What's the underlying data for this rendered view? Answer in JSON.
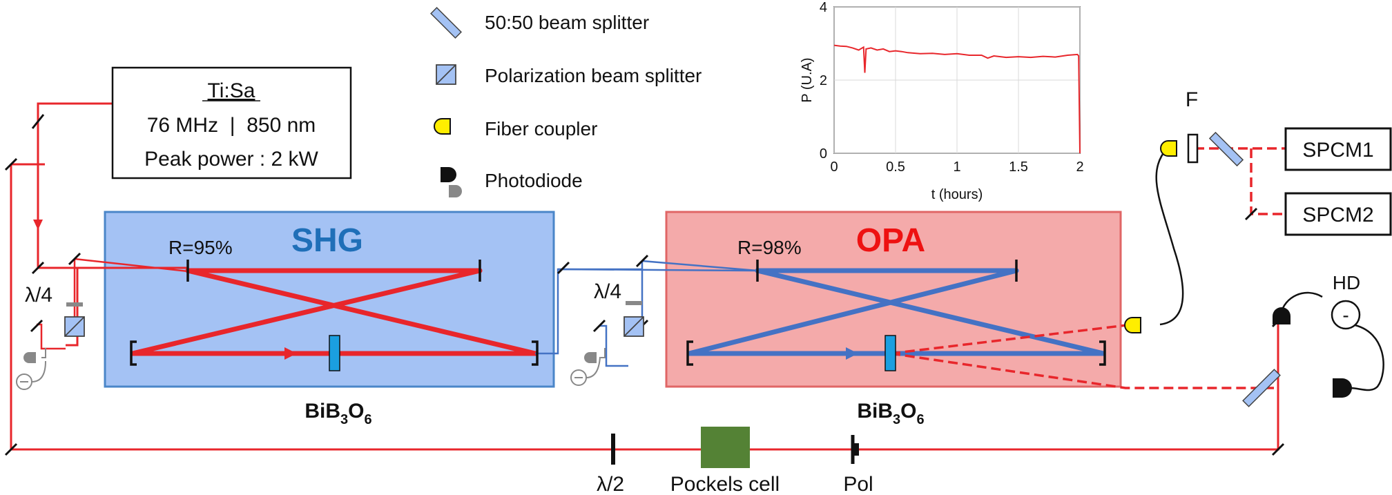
{
  "laser": {
    "title": "Ti:Sa",
    "line1": "76 MHz  |  850 nm",
    "line2": "Peak power : 2 kW"
  },
  "legend": {
    "bs_5050": "50:50 beam splitter",
    "pbs": "Polarization beam splitter",
    "fiber_coupler": "Fiber coupler",
    "photodiode": "Photodiode"
  },
  "shg": {
    "title": "SHG",
    "mirror_reflectivity": "R=95%",
    "crystal": "BiB",
    "crystal_sub1": "3",
    "crystal_mid": "O",
    "crystal_sub2": "6",
    "waveplate": "λ/4"
  },
  "opa": {
    "title": "OPA",
    "mirror_reflectivity": "R=98%",
    "crystal": "BiB",
    "crystal_sub1": "3",
    "crystal_mid": "O",
    "crystal_sub2": "6",
    "waveplate": "λ/4"
  },
  "detection": {
    "filter": "F",
    "spcm1": "SPCM1",
    "spcm2": "SPCM2",
    "hd": "HD",
    "hd_sign": "-"
  },
  "bottom": {
    "half_wave": "λ/2",
    "pockels": "Pockels cell",
    "pol": "Pol"
  },
  "colors": {
    "red_beam": "#e8262b",
    "blue_beam": "#4472c4",
    "shg_fill": "#a4c2f4",
    "shg_stroke": "#4a86c8",
    "opa_fill": "#f4aaaa",
    "opa_stroke": "#e06666",
    "fiber_yellow": "#ffee00",
    "pockels_green": "#548235",
    "crystal_blue": "#1b9fe0",
    "shg_title": "#1f6fb8",
    "opa_title": "#ee1111"
  },
  "chart_data": {
    "type": "line",
    "xlabel": "t (hours)",
    "ylabel": "P (U.A)",
    "xlim": [
      0,
      2
    ],
    "ylim": [
      0,
      4
    ],
    "xticks": [
      "0",
      "0.5",
      "1",
      "1.5",
      "2"
    ],
    "yticks": [
      "0",
      "2",
      "4"
    ],
    "grid": true,
    "series": [
      {
        "color": "#e8262b",
        "x": [
          0,
          0.05,
          0.1,
          0.15,
          0.2,
          0.24,
          0.25,
          0.26,
          0.3,
          0.35,
          0.4,
          0.45,
          0.5,
          0.55,
          0.6,
          0.7,
          0.8,
          0.9,
          1.0,
          1.1,
          1.2,
          1.25,
          1.3,
          1.4,
          1.5,
          1.6,
          1.7,
          1.8,
          1.9,
          1.98,
          1.99,
          2.0
        ],
        "y": [
          2.95,
          2.93,
          2.92,
          2.88,
          2.82,
          2.9,
          2.2,
          2.85,
          2.88,
          2.82,
          2.85,
          2.78,
          2.8,
          2.78,
          2.75,
          2.72,
          2.73,
          2.7,
          2.72,
          2.68,
          2.68,
          2.6,
          2.66,
          2.62,
          2.64,
          2.62,
          2.65,
          2.63,
          2.68,
          2.7,
          2.66,
          0
        ]
      }
    ]
  }
}
